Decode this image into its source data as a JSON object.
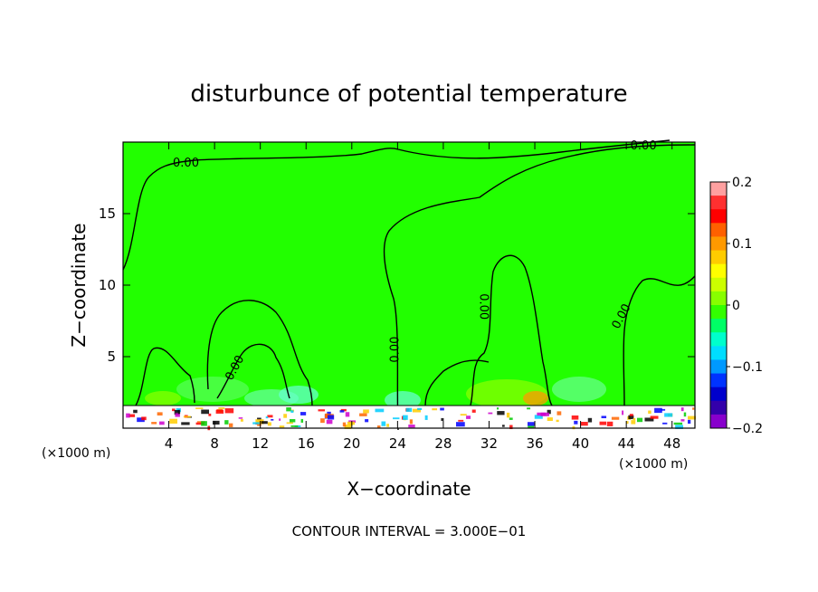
{
  "chart_data": {
    "type": "heatmap",
    "title": "disturbunce of potential temperature",
    "xlabel": "X−coordinate",
    "ylabel": "Z−coordinate",
    "x_unit_left": "(×1000 m)",
    "x_unit_right": "(×1000 m)",
    "footer": "CONTOUR INTERVAL = 3.000E−01",
    "xlim": [
      0,
      50
    ],
    "ylim": [
      0,
      20
    ],
    "x_ticks": [
      4,
      8,
      12,
      16,
      20,
      24,
      28,
      32,
      36,
      40,
      44,
      48
    ],
    "y_ticks": [
      5,
      10,
      15
    ],
    "contour_interval": 0.3,
    "contour_labels": [
      {
        "text": "0.00",
        "x": 5.5,
        "y": 18.5,
        "angle": 0
      },
      {
        "text": "0.00",
        "x": 45.5,
        "y": 19.7,
        "angle": 0
      },
      {
        "text": "0.00",
        "x": 9.8,
        "y": 4.2,
        "angle": -62
      },
      {
        "text": "0.00",
        "x": 23.8,
        "y": 5.5,
        "angle": -90
      },
      {
        "text": "0.00",
        "x": 31.5,
        "y": 8.5,
        "angle": 90
      },
      {
        "text": "0.00",
        "x": 43.6,
        "y": 7.8,
        "angle": -62
      }
    ],
    "colorbar": {
      "min": -0.2,
      "max": 0.2,
      "tick_labels": [
        "0.2",
        "0.1",
        "0",
        "−0.1",
        "−0.2"
      ],
      "tick_values": [
        0.2,
        0.1,
        0,
        -0.1,
        -0.2
      ],
      "colors": [
        "#ffa0a0",
        "#ff3030",
        "#ff0000",
        "#ff6000",
        "#ff9900",
        "#ffcc00",
        "#ffff00",
        "#ccff00",
        "#88ff00",
        "#33ff00",
        "#00ff66",
        "#00ffcc",
        "#00ddff",
        "#0099ff",
        "#0033ff",
        "#0000cc",
        "#3300aa",
        "#8800cc"
      ]
    },
    "field_background": "#22ff00"
  }
}
